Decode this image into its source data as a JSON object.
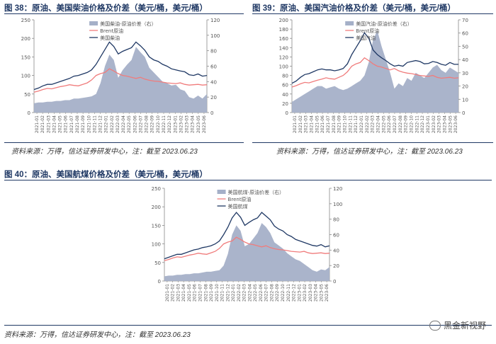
{
  "figures": [
    {
      "id": "fig38",
      "title": "图 38：原油、美国柴油价格及价差（美元/桶，美元/桶）",
      "source": "资料来源：万得，信达证券研发中心，注：截至 2023.06.23"
    },
    {
      "id": "fig39",
      "title": "图 39：原油、美国汽油价格及价差（美元/桶，美元/桶）",
      "source": "资料来源：万得，信达证券研发中心，注：截至 2023.06.23"
    },
    {
      "id": "fig40",
      "title": "图 40：原油、美国航煤价格及价差（美元/桶，美元/桶）",
      "source": "资料来源：万得，信达证券研发中心，注：截至 2023.06.23"
    }
  ],
  "watermark": "黑金新视野",
  "colors": {
    "spread": "#a5b0c8",
    "brent": "#f07c7c",
    "product": "#1f3864",
    "axis": "#888888"
  },
  "chart_data": [
    {
      "type": "line",
      "left_ylim": [
        0,
        250
      ],
      "left_ticks": [
        0,
        50,
        100,
        150,
        200,
        250
      ],
      "right_ylim": [
        0,
        120
      ],
      "right_ticks": [
        0,
        20,
        40,
        60,
        80,
        100,
        120
      ],
      "x_ticks": [
        "2021-01",
        "2021-02",
        "2021-03",
        "2021-04",
        "2021-05",
        "2021-06",
        "2021-07",
        "2021-08",
        "2021-09",
        "2021-10",
        "2021-11",
        "2021-12",
        "2022-01",
        "2022-02",
        "2022-03",
        "2022-04",
        "2022-05",
        "2022-06",
        "2022-07",
        "2022-08",
        "2022-09",
        "2022-10",
        "2022-11",
        "2022-12",
        "2023-01",
        "2023-02",
        "2023-03",
        "2023-04",
        "2023-05",
        "2023-06"
      ],
      "legend_position": "top-center",
      "series": [
        {
          "name": "美国柴油-原油价差（右）",
          "kind": "area",
          "axis": "right",
          "values": [
            12,
            13,
            13,
            14,
            14,
            15,
            15,
            16,
            16,
            18,
            18,
            19,
            20,
            21,
            24,
            38,
            60,
            75,
            68,
            45,
            55,
            62,
            68,
            85,
            78,
            72,
            58,
            52,
            46,
            40,
            38,
            35,
            36,
            30,
            28,
            20,
            18,
            22,
            18,
            24
          ]
        },
        {
          "name": "Brent原油",
          "kind": "line",
          "axis": "left",
          "values": [
            55,
            58,
            62,
            65,
            64,
            67,
            70,
            72,
            75,
            73,
            72,
            76,
            80,
            88,
            100,
            105,
            108,
            118,
            112,
            105,
            100,
            98,
            95,
            92,
            95,
            90,
            87,
            85,
            84,
            82,
            80,
            79,
            78,
            80,
            76,
            74,
            75,
            76,
            74,
            75
          ]
        },
        {
          "name": "美国柴油",
          "kind": "line",
          "axis": "left",
          "values": [
            62,
            66,
            72,
            76,
            76,
            80,
            84,
            88,
            92,
            98,
            100,
            104,
            108,
            115,
            130,
            150,
            170,
            190,
            178,
            158,
            165,
            170,
            175,
            190,
            180,
            168,
            150,
            142,
            138,
            130,
            125,
            118,
            115,
            112,
            110,
            102,
            100,
            104,
            98,
            100
          ]
        }
      ]
    },
    {
      "type": "line",
      "left_ylim": [
        0,
        200
      ],
      "left_ticks": [
        0,
        20,
        40,
        60,
        80,
        100,
        120,
        140,
        160,
        180,
        200
      ],
      "right_ylim": [
        0,
        70
      ],
      "right_ticks": [
        0,
        10,
        20,
        30,
        40,
        50,
        60,
        70
      ],
      "x_ticks": [
        "2021-01",
        "2021-02",
        "2021-03",
        "2021-04",
        "2021-05",
        "2021-06",
        "2021-07",
        "2021-08",
        "2021-09",
        "2021-10",
        "2021-11",
        "2021-12",
        "2022-01",
        "2022-02",
        "2022-03",
        "2022-04",
        "2022-05",
        "2022-06",
        "2022-07",
        "2022-08",
        "2022-09",
        "2022-10",
        "2022-11",
        "2022-12",
        "2023-01",
        "2023-02",
        "2023-03",
        "2023-04",
        "2023-05",
        "2023-06"
      ],
      "legend_position": "top-center",
      "series": [
        {
          "name": "美国汽油-原油价差（右）",
          "kind": "area",
          "axis": "right",
          "values": [
            8,
            10,
            12,
            14,
            16,
            18,
            20,
            20,
            18,
            19,
            20,
            18,
            17,
            18,
            20,
            22,
            24,
            28,
            38,
            55,
            62,
            50,
            40,
            30,
            18,
            22,
            20,
            26,
            24,
            30,
            28,
            26,
            30,
            34,
            36,
            32,
            30,
            34,
            32,
            30
          ]
        },
        {
          "name": "Brent原油",
          "kind": "line",
          "axis": "left",
          "values": [
            55,
            58,
            62,
            65,
            64,
            67,
            70,
            72,
            75,
            73,
            72,
            76,
            80,
            88,
            100,
            105,
            108,
            118,
            112,
            105,
            100,
            98,
            95,
            92,
            95,
            90,
            87,
            85,
            84,
            82,
            80,
            79,
            78,
            80,
            76,
            74,
            75,
            76,
            74,
            75
          ]
        },
        {
          "name": "美国汽油",
          "kind": "line",
          "axis": "left",
          "values": [
            63,
            68,
            76,
            82,
            84,
            88,
            92,
            94,
            92,
            92,
            90,
            92,
            95,
            105,
            125,
            140,
            155,
            172,
            160,
            135,
            125,
            118,
            112,
            105,
            100,
            102,
            100,
            108,
            110,
            112,
            110,
            105,
            106,
            110,
            108,
            104,
            102,
            108,
            104,
            104
          ]
        }
      ]
    },
    {
      "type": "line",
      "left_ylim": [
        0,
        250
      ],
      "left_ticks": [
        0,
        50,
        100,
        150,
        200,
        250
      ],
      "right_ylim": [
        0,
        120
      ],
      "right_ticks": [
        0,
        20,
        40,
        60,
        80,
        100,
        120
      ],
      "x_ticks": [
        "2021-01",
        "2021-02",
        "2021-03",
        "2021-04",
        "2021-05",
        "2021-06",
        "2021-07",
        "2021-08",
        "2021-09",
        "2021-10",
        "2021-11",
        "2021-12",
        "2022-01",
        "2022-02",
        "2022-03",
        "2022-04",
        "2022-05",
        "2022-06",
        "2022-07",
        "2022-08",
        "2022-09",
        "2022-10",
        "2022-11",
        "2022-12",
        "2023-01",
        "2023-02",
        "2023-03",
        "2023-04",
        "2023-05",
        "2023-06"
      ],
      "legend_position": "top-center",
      "series": [
        {
          "name": "美国航煤-原油价差（右）",
          "kind": "area",
          "axis": "right",
          "values": [
            6,
            7,
            7,
            8,
            8,
            9,
            9,
            10,
            10,
            11,
            12,
            12,
            13,
            14,
            20,
            35,
            60,
            72,
            65,
            45,
            48,
            55,
            62,
            75,
            70,
            62,
            50,
            46,
            42,
            36,
            32,
            28,
            26,
            22,
            18,
            14,
            12,
            15,
            14,
            18
          ]
        },
        {
          "name": "Brent原油",
          "kind": "line",
          "axis": "left",
          "values": [
            55,
            58,
            62,
            65,
            64,
            67,
            70,
            72,
            75,
            73,
            72,
            76,
            80,
            88,
            100,
            105,
            108,
            118,
            112,
            105,
            100,
            98,
            95,
            92,
            95,
            90,
            87,
            85,
            84,
            82,
            80,
            79,
            78,
            80,
            76,
            74,
            75,
            76,
            74,
            75
          ]
        },
        {
          "name": "美国航煤",
          "kind": "line",
          "axis": "left",
          "values": [
            60,
            64,
            68,
            72,
            72,
            76,
            80,
            84,
            86,
            90,
            92,
            95,
            100,
            108,
            125,
            145,
            170,
            185,
            172,
            150,
            158,
            165,
            170,
            185,
            175,
            165,
            148,
            140,
            135,
            125,
            120,
            112,
            108,
            104,
            100,
            96,
            94,
            98,
            92,
            95
          ]
        }
      ]
    }
  ]
}
